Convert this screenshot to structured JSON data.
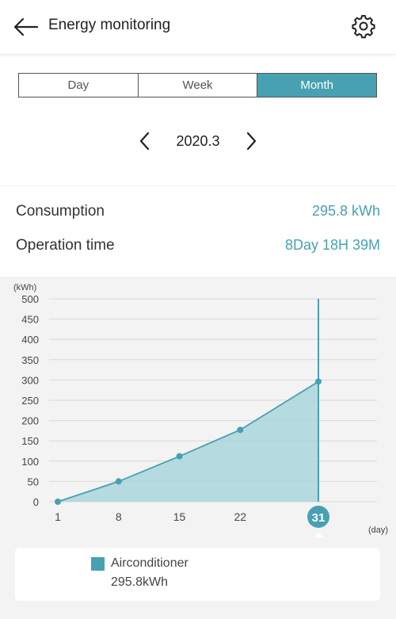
{
  "header": {
    "title": "Energy monitoring",
    "back_icon": "arrow-left-icon",
    "settings_icon": "gear-icon"
  },
  "tabs": [
    {
      "label": "Day",
      "active": false
    },
    {
      "label": "Week",
      "active": false
    },
    {
      "label": "Month",
      "active": true
    }
  ],
  "period": {
    "label": "2020.3",
    "prev_icon": "chevron-left-icon",
    "next_icon": "chevron-right-icon"
  },
  "stats": {
    "consumption_label": "Consumption",
    "consumption_value": "295.8 kWh",
    "operation_label": "Operation time",
    "operation_value": "8Day 18H 39M"
  },
  "colors": {
    "accent": "#47a1b2",
    "fill": "#a9d5dc"
  },
  "chart_data": {
    "type": "area",
    "ylabel": "(kWh)",
    "xlabel": "(day)",
    "ylim": [
      0,
      500
    ],
    "yticks": [
      0,
      50,
      100,
      150,
      200,
      250,
      300,
      350,
      400,
      450,
      500
    ],
    "xticks": [
      1,
      8,
      15,
      22,
      31
    ],
    "x": [
      1,
      8,
      15,
      22,
      31
    ],
    "values": [
      0,
      50,
      112,
      177,
      296
    ],
    "selected_x": 31,
    "grid": true
  },
  "legend": {
    "name": "Airconditioner",
    "total": "295.8kWh"
  }
}
